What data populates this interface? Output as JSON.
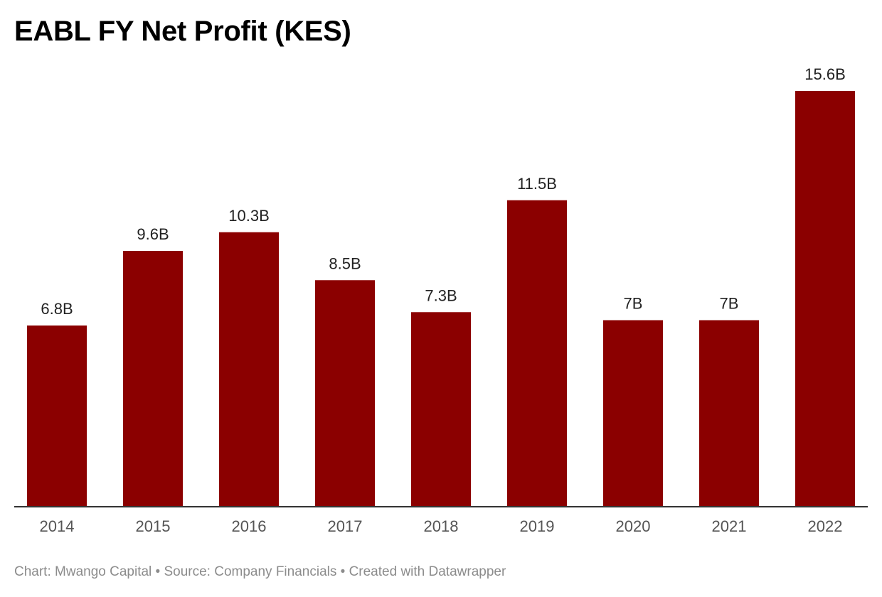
{
  "title": "EABL FY Net Profit (KES)",
  "footer": "Chart: Mwango Capital • Source: Company Financials • Created with Datawrapper",
  "colors": {
    "bar": "#8b0000",
    "baseline": "#333333",
    "label": "#222222",
    "tick": "#555555"
  },
  "chart_data": {
    "type": "bar",
    "title": "EABL FY Net Profit (KES)",
    "xlabel": "",
    "ylabel": "",
    "grid": false,
    "categories": [
      "2014",
      "2015",
      "2016",
      "2017",
      "2018",
      "2019",
      "2020",
      "2021",
      "2022"
    ],
    "values": [
      6.8,
      9.6,
      10.3,
      8.5,
      7.3,
      11.5,
      7.0,
      7.0,
      15.6
    ],
    "data_labels": [
      "6.8B",
      "9.6B",
      "10.3B",
      "8.5B",
      "7.3B",
      "11.5B",
      "7B",
      "7B",
      "15.6B"
    ],
    "ylim": [
      0,
      15.6
    ]
  }
}
